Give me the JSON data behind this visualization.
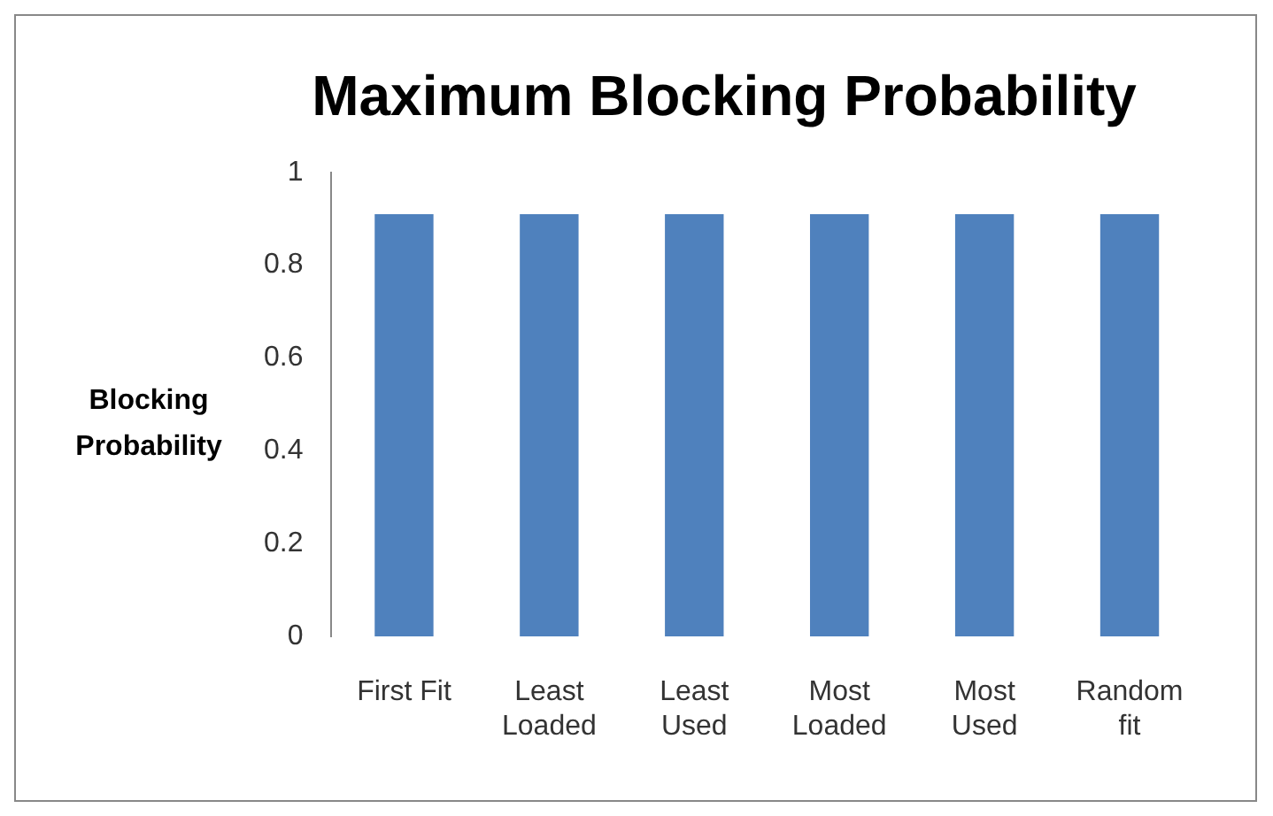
{
  "chart_data": {
    "type": "bar",
    "title": "Maximum Blocking Probability",
    "ylabel": "Blocking Probability",
    "categories": [
      "First Fit",
      "Least Loaded",
      "Least Used",
      "Most Loaded",
      "Most Used",
      "Random fit"
    ],
    "values": [
      0.91,
      0.91,
      0.91,
      0.91,
      0.91,
      0.91
    ],
    "color": "#4f81bd",
    "ylim": [
      0,
      1
    ],
    "yticks": [
      0,
      0.2,
      0.4,
      0.6,
      0.8,
      1
    ],
    "grid": false,
    "legend": false
  }
}
